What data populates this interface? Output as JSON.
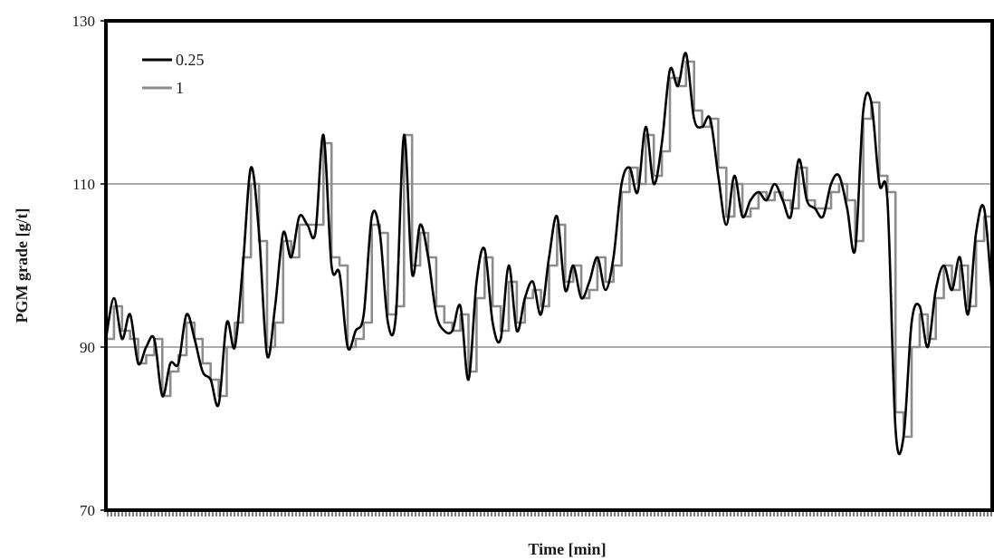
{
  "chart_data": {
    "type": "line",
    "title": "",
    "xlabel": "Time [min]",
    "ylabel": "PGM grade [g/t]",
    "ylim": [
      70,
      130
    ],
    "yticks": [
      70,
      90,
      110,
      130
    ],
    "grid": "horizontal",
    "legend_placement": "top-left",
    "series": [
      {
        "name": "0.25",
        "color": "#000000",
        "values": [
          91,
          96,
          91,
          94,
          88,
          90,
          91,
          84,
          88,
          88,
          94,
          91,
          87,
          86,
          83,
          93,
          90,
          100,
          112,
          104,
          89,
          95,
          104,
          101,
          106,
          105,
          104,
          116,
          100,
          99,
          90,
          92,
          94,
          106,
          104,
          93,
          94,
          116,
          99,
          105,
          101,
          94,
          92,
          92,
          95,
          86,
          98,
          102,
          93,
          91,
          100,
          92,
          96,
          98,
          94,
          101,
          106,
          97,
          100,
          96,
          98,
          101,
          97,
          101,
          110,
          112,
          109,
          117,
          110,
          115,
          124,
          122,
          126,
          118,
          117,
          118,
          111,
          105,
          111,
          106,
          108,
          109,
          108,
          110,
          108,
          106,
          113,
          108,
          107,
          106,
          110,
          111,
          107,
          102,
          119,
          120,
          110,
          108,
          80,
          79,
          93,
          95,
          90,
          97,
          100,
          97,
          101,
          94,
          104,
          107,
          96
        ]
      },
      {
        "name": "1",
        "color": "#8c8c8c",
        "values": [
          91,
          95,
          92,
          91,
          88,
          89,
          91,
          84,
          87,
          89,
          93,
          91,
          88,
          86,
          84,
          90,
          93,
          101,
          110,
          103,
          90,
          93,
          103,
          101,
          105,
          105,
          105,
          115,
          101,
          100,
          90,
          91,
          93,
          105,
          104,
          94,
          95,
          116,
          100,
          104,
          101,
          95,
          93,
          92,
          94,
          87,
          96,
          101,
          95,
          92,
          98,
          93,
          96,
          97,
          95,
          100,
          105,
          98,
          100,
          96,
          97,
          101,
          98,
          100,
          109,
          112,
          110,
          116,
          111,
          114,
          123,
          122,
          125,
          119,
          117,
          118,
          112,
          106,
          110,
          106,
          107,
          109,
          108,
          109,
          108,
          107,
          112,
          108,
          107,
          107,
          109,
          110,
          108,
          103,
          118,
          120,
          111,
          109,
          82,
          79,
          90,
          94,
          91,
          96,
          100,
          97,
          100,
          95,
          103,
          106,
          97
        ]
      }
    ]
  }
}
